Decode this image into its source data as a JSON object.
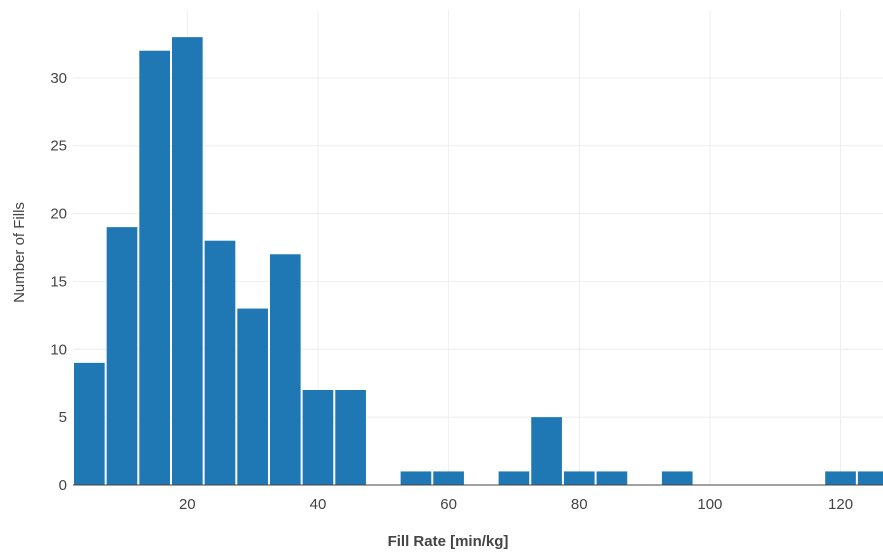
{
  "chart_data": {
    "type": "bar",
    "title": "",
    "xlabel": "Fill Rate [min/kg]",
    "ylabel": "Number of Fills",
    "bin_width": 5,
    "bins": [
      {
        "start": 2.5,
        "end": 7.5,
        "count": 9
      },
      {
        "start": 7.5,
        "end": 12.5,
        "count": 19
      },
      {
        "start": 12.5,
        "end": 17.5,
        "count": 32
      },
      {
        "start": 17.5,
        "end": 22.5,
        "count": 33
      },
      {
        "start": 22.5,
        "end": 27.5,
        "count": 18
      },
      {
        "start": 27.5,
        "end": 32.5,
        "count": 13
      },
      {
        "start": 32.5,
        "end": 37.5,
        "count": 17
      },
      {
        "start": 37.5,
        "end": 42.5,
        "count": 7
      },
      {
        "start": 42.5,
        "end": 47.5,
        "count": 7
      },
      {
        "start": 47.5,
        "end": 52.5,
        "count": 0
      },
      {
        "start": 52.5,
        "end": 57.5,
        "count": 1
      },
      {
        "start": 57.5,
        "end": 62.5,
        "count": 1
      },
      {
        "start": 62.5,
        "end": 67.5,
        "count": 0
      },
      {
        "start": 67.5,
        "end": 72.5,
        "count": 1
      },
      {
        "start": 72.5,
        "end": 77.5,
        "count": 5
      },
      {
        "start": 77.5,
        "end": 82.5,
        "count": 1
      },
      {
        "start": 82.5,
        "end": 87.5,
        "count": 1
      },
      {
        "start": 87.5,
        "end": 92.5,
        "count": 0
      },
      {
        "start": 92.5,
        "end": 97.5,
        "count": 1
      },
      {
        "start": 97.5,
        "end": 102.5,
        "count": 0
      },
      {
        "start": 102.5,
        "end": 107.5,
        "count": 0
      },
      {
        "start": 107.5,
        "end": 112.5,
        "count": 0
      },
      {
        "start": 112.5,
        "end": 117.5,
        "count": 0
      },
      {
        "start": 117.5,
        "end": 122.5,
        "count": 1
      },
      {
        "start": 122.5,
        "end": 127.5,
        "count": 1
      }
    ],
    "xlim": [
      2.5,
      126.5
    ],
    "ylim": [
      0,
      35
    ],
    "x_ticks": [
      20,
      40,
      60,
      80,
      100,
      120
    ],
    "y_ticks": [
      0,
      5,
      10,
      15,
      20,
      25,
      30
    ],
    "grid": true,
    "colors": {
      "bar": "#1f77b4",
      "grid": "#eeeeee",
      "axis_text": "#444444"
    }
  }
}
